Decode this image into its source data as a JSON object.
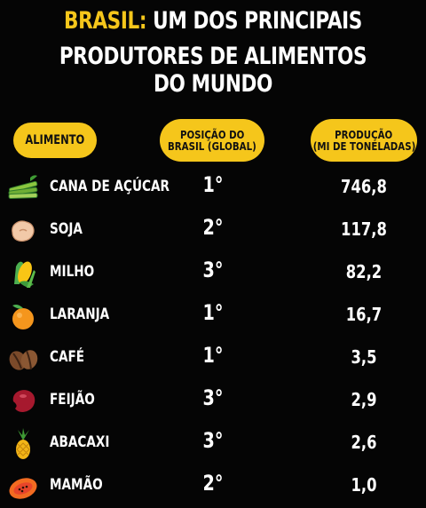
{
  "title": {
    "accent": "BRASIL:",
    "line1_rest": " UM DOS PRINCIPAIS",
    "line2": "PRODUTORES DE ALIMENTOS DO MUNDO"
  },
  "headers": {
    "alimento": "ALIMENTO",
    "posicao_line1": "POSIÇÃO DO",
    "posicao_line2": "BRASIL (GLOBAL)",
    "producao_line1": "PRODUÇÃO",
    "producao_line2": "(MI DE TONELADAS)"
  },
  "rows": [
    {
      "name": "CANA DE AÇÚCAR",
      "position": "1°",
      "production": "746,8",
      "icon": "sugarcane-icon"
    },
    {
      "name": "SOJA",
      "position": "2°",
      "production": "117,8",
      "icon": "soybean-icon"
    },
    {
      "name": "MILHO",
      "position": "3°",
      "production": "82,2",
      "icon": "corn-icon"
    },
    {
      "name": "LARANJA",
      "position": "1°",
      "production": "16,7",
      "icon": "orange-icon"
    },
    {
      "name": "CAFÉ",
      "position": "1°",
      "production": "3,5",
      "icon": "coffee-bean-icon"
    },
    {
      "name": "FEIJÃO",
      "position": "3°",
      "production": "2,9",
      "icon": "bean-icon"
    },
    {
      "name": "ABACAXI",
      "position": "3°",
      "production": "2,6",
      "icon": "pineapple-icon"
    },
    {
      "name": "MAMÃO",
      "position": "2°",
      "production": "1,0",
      "icon": "papaya-icon"
    }
  ]
}
